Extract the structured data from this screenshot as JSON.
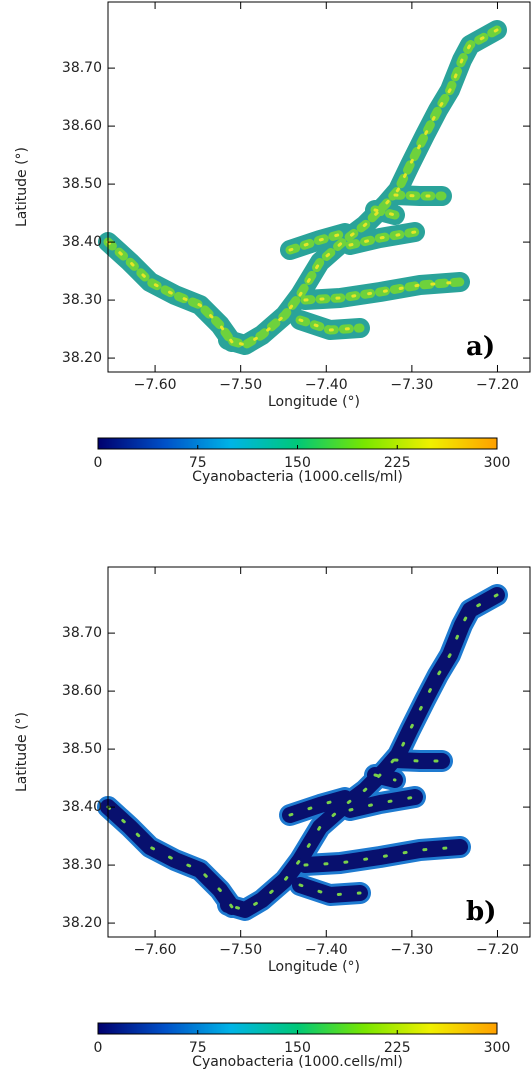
{
  "chart_data": [
    {
      "type": "map",
      "label": "a)",
      "xlabel": "Longitude (°)",
      "ylabel": "Latitude (°)",
      "xlim": [
        -7.655,
        -7.162
      ],
      "ylim": [
        38.176,
        38.814
      ],
      "xticks": [
        {
          "value": -7.6,
          "label": "−7.60"
        },
        {
          "value": -7.5,
          "label": "−7.50"
        },
        {
          "value": -7.4,
          "label": "−7.40"
        },
        {
          "value": -7.3,
          "label": "−7.30"
        },
        {
          "value": -7.2,
          "label": "−7.20"
        }
      ],
      "yticks": [
        {
          "value": 38.2,
          "label": "38.20"
        },
        {
          "value": 38.3,
          "label": "38.30"
        },
        {
          "value": 38.4,
          "label": "38.40"
        },
        {
          "value": 38.5,
          "label": "38.50"
        },
        {
          "value": 38.6,
          "label": "38.60"
        },
        {
          "value": 38.7,
          "label": "38.70"
        }
      ],
      "colorbar": {
        "label": "Cyanobacteria (1000.cells/ml)",
        "lim": [
          0,
          300
        ],
        "ticks": [
          0,
          75,
          150,
          225,
          300
        ],
        "colors": [
          "#00006e",
          "#0050c8",
          "#00b4e6",
          "#00c878",
          "#78e600",
          "#f0f000",
          "#ffa000"
        ]
      }
    },
    {
      "type": "map",
      "label": "b)",
      "xlabel": "Longitude (°)",
      "ylabel": "Latitude (°)",
      "xlim": [
        -7.655,
        -7.162
      ],
      "ylim": [
        38.176,
        38.814
      ],
      "xticks": [
        {
          "value": -7.6,
          "label": "−7.60"
        },
        {
          "value": -7.5,
          "label": "−7.50"
        },
        {
          "value": -7.4,
          "label": "−7.40"
        },
        {
          "value": -7.3,
          "label": "−7.30"
        },
        {
          "value": -7.2,
          "label": "−7.20"
        }
      ],
      "yticks": [
        {
          "value": 38.2,
          "label": "38.20"
        },
        {
          "value": 38.3,
          "label": "38.30"
        },
        {
          "value": 38.4,
          "label": "38.40"
        },
        {
          "value": 38.5,
          "label": "38.50"
        },
        {
          "value": 38.6,
          "label": "38.60"
        },
        {
          "value": 38.7,
          "label": "38.70"
        }
      ],
      "colorbar": {
        "label": "Cyanobacteria (1000.cells/ml)",
        "lim": [
          0,
          300
        ],
        "ticks": [
          0,
          75,
          150,
          225,
          300
        ],
        "colors": [
          "#00006e",
          "#0050c8",
          "#00b4e6",
          "#00c878",
          "#78e600",
          "#f0f000",
          "#ffa000"
        ]
      }
    }
  ]
}
